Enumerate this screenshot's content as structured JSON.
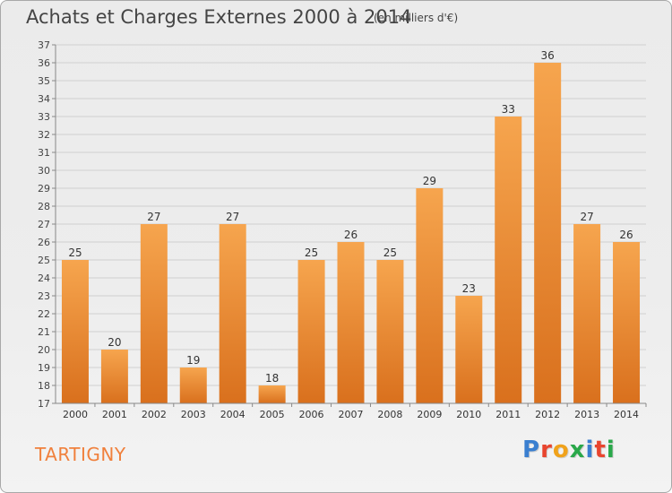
{
  "header": {
    "title": "Achats et Charges Externes 2000 à 2014",
    "unit": "(en milliers d'€)"
  },
  "footer": {
    "location": "TARTIGNY",
    "logo": "Proxiti",
    "logo_colors": [
      "#3a7fd0",
      "#e8452f",
      "#f0a21b",
      "#2aa84a",
      "#3a7fd0",
      "#e8452f",
      "#2aa84a"
    ]
  },
  "colors": {
    "bar_top": "#f6a54e",
    "bar_bottom": "#d9701d",
    "location_text": "#f0803c",
    "grid": "#d0d0d0"
  },
  "chart_data": {
    "type": "bar",
    "title": "Achats et Charges Externes 2000 à 2014",
    "subtitle": "(en milliers d'€)",
    "xlabel": "",
    "ylabel": "",
    "ylim": [
      17,
      37
    ],
    "yticks": [
      17,
      18,
      19,
      20,
      21,
      22,
      23,
      24,
      25,
      26,
      27,
      28,
      29,
      30,
      31,
      32,
      33,
      34,
      35,
      36,
      37
    ],
    "grid": true,
    "categories": [
      "2000",
      "2001",
      "2002",
      "2003",
      "2004",
      "2005",
      "2006",
      "2007",
      "2008",
      "2009",
      "2010",
      "2011",
      "2012",
      "2013",
      "2014"
    ],
    "values": [
      25,
      20,
      27,
      19,
      27,
      18,
      25,
      26,
      25,
      29,
      23,
      33,
      36,
      27,
      26
    ]
  }
}
